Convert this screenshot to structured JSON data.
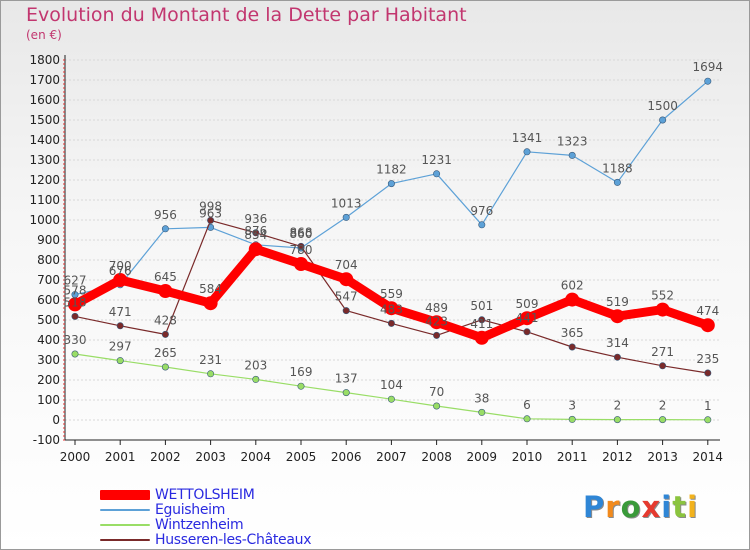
{
  "title": "Evolution du Montant de la Dette par Habitant",
  "subtitle": "(en €)",
  "logo_text": "Proxiti",
  "chart_data": {
    "type": "line",
    "title": "Evolution du Montant de la Dette par Habitant",
    "ylabel": "(en €)",
    "x": [
      "2000",
      "2001",
      "2002",
      "2003",
      "2004",
      "2005",
      "2006",
      "2007",
      "2008",
      "2009",
      "2010",
      "2011",
      "2012",
      "2013",
      "2014"
    ],
    "y_ticks": [
      "-100",
      "0",
      "100",
      "200",
      "300",
      "400",
      "500",
      "600",
      "700",
      "800",
      "900",
      "1000",
      "1100",
      "1200",
      "1300",
      "1400",
      "1500",
      "1600",
      "1700",
      "1800"
    ],
    "ylim": [
      -100,
      1800
    ],
    "legend_position": "bottom-left",
    "series": [
      {
        "name": "WETTOLSHEIM",
        "color": "#ff0000",
        "values": [
          578,
          700,
          645,
          584,
          854,
          780,
          704,
          559,
          489,
          411,
          509,
          602,
          519,
          552,
          474
        ]
      },
      {
        "name": "Eguisheim",
        "color": "#5da1d7",
        "values": [
          627,
          676,
          956,
          963,
          876,
          860,
          1013,
          1182,
          1231,
          976,
          1341,
          1323,
          1188,
          1500,
          1694
        ]
      },
      {
        "name": "Wintzenheim",
        "color": "#99dd66",
        "values": [
          330,
          297,
          265,
          231,
          203,
          169,
          137,
          104,
          70,
          38,
          6,
          3,
          2,
          2,
          1
        ]
      },
      {
        "name": "Husseren-les-Châteaux",
        "color": "#7a2a2a",
        "values": [
          518,
          471,
          428,
          998,
          936,
          868,
          547,
          483,
          423,
          501,
          441,
          365,
          314,
          271,
          235
        ]
      }
    ]
  }
}
